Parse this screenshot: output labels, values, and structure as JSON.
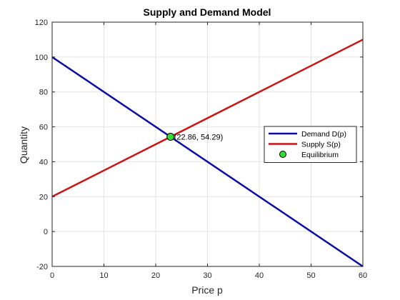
{
  "chart_data": {
    "type": "line",
    "title": "Supply and Demand Model",
    "xlabel": "Price p",
    "ylabel": "Quantity",
    "xlim": [
      0,
      60
    ],
    "ylim": [
      -20,
      120
    ],
    "x_ticks": [
      0,
      10,
      20,
      30,
      40,
      50,
      60
    ],
    "y_ticks": [
      -20,
      0,
      20,
      40,
      60,
      80,
      100,
      120
    ],
    "grid": true,
    "legend_position": "right",
    "series": [
      {
        "name": "Demand D(p)",
        "kind": "line",
        "color": "#0a0aa8",
        "x": [
          0,
          60
        ],
        "y": [
          100,
          -20
        ]
      },
      {
        "name": "Supply S(p)",
        "kind": "line",
        "color": "#cc1414",
        "x": [
          0,
          60
        ],
        "y": [
          20,
          110
        ]
      },
      {
        "name": "Equilibrium",
        "kind": "marker",
        "color": "#33dd33",
        "x": [
          22.86
        ],
        "y": [
          54.29
        ]
      }
    ],
    "annotations": [
      {
        "text": "(22.86, 54.29)",
        "x": 22.86,
        "y": 54.29
      }
    ]
  }
}
